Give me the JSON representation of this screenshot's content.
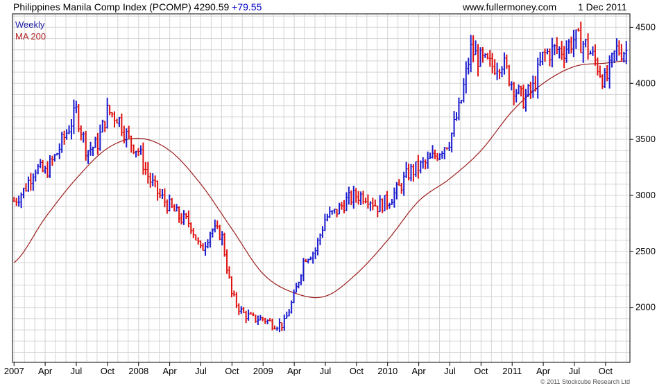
{
  "header": {
    "title": "Philippines Manila Comp Index (PCOMP) 4290.59",
    "change": "+79.55",
    "site": "www.fullermoney.com",
    "date": "1 Dec 2011"
  },
  "legend": {
    "series1": "Weekly",
    "series2": "MA 200"
  },
  "copyright": "© 2011 Stockcube Research Ltd",
  "colors": {
    "up": "#1a1ad0",
    "down": "#e01010",
    "ma": "#9c1c1c",
    "grid": "#d4d4d4",
    "axis": "#000000"
  },
  "chart_data": {
    "type": "line",
    "x_ticks": [
      "2007",
      "Apr",
      "Jul",
      "Oct",
      "2008",
      "Apr",
      "Jul",
      "Oct",
      "2009",
      "Apr",
      "Jul",
      "Oct",
      "2010",
      "Apr",
      "Jul",
      "Oct",
      "2011",
      "Apr",
      "Jul",
      "Oct"
    ],
    "y_ticks": [
      "2000",
      "2500",
      "3000",
      "3500",
      "4000",
      "4500"
    ],
    "ylim": [
      1510,
      4620
    ],
    "grid": true,
    "legend_position": "top-left",
    "series": [
      {
        "name": "Weekly",
        "style": "ohlc-bars",
        "x": [
          "2007-01",
          "2007-02",
          "2007-03",
          "2007-04",
          "2007-05",
          "2007-06",
          "2007-07",
          "2007-08",
          "2007-09",
          "2007-10",
          "2007-11",
          "2007-12",
          "2008-01",
          "2008-02",
          "2008-03",
          "2008-04",
          "2008-05",
          "2008-06",
          "2008-07",
          "2008-08",
          "2008-09",
          "2008-10",
          "2008-11",
          "2008-12",
          "2009-01",
          "2009-02",
          "2009-03",
          "2009-04",
          "2009-05",
          "2009-06",
          "2009-07",
          "2009-08",
          "2009-09",
          "2009-10",
          "2009-11",
          "2009-12",
          "2010-01",
          "2010-02",
          "2010-03",
          "2010-04",
          "2010-05",
          "2010-06",
          "2010-07",
          "2010-08",
          "2010-09",
          "2010-10",
          "2010-11",
          "2010-12",
          "2011-01",
          "2011-02",
          "2011-03",
          "2011-04",
          "2011-05",
          "2011-06",
          "2011-07",
          "2011-08",
          "2011-09",
          "2011-10",
          "2011-11",
          "2011-12"
        ],
        "values": [
          2950,
          3050,
          3250,
          3200,
          3350,
          3550,
          3750,
          3400,
          3450,
          3750,
          3700,
          3500,
          3400,
          3150,
          3000,
          2900,
          2800,
          2750,
          2500,
          2700,
          2650,
          2100,
          1950,
          1900,
          1900,
          1850,
          1850,
          2100,
          2450,
          2500,
          2800,
          2850,
          2950,
          3000,
          3000,
          2900,
          2950,
          3050,
          3200,
          3250,
          3300,
          3400,
          3500,
          3800,
          4300,
          4200,
          4150,
          4200,
          4000,
          3850,
          3950,
          4250,
          4300,
          4300,
          4400,
          4350,
          4200,
          4000,
          4300,
          4290
        ]
      },
      {
        "name": "MA 200",
        "x": [
          "2007-01",
          "2007-04",
          "2007-07",
          "2007-10",
          "2008-01",
          "2008-04",
          "2008-07",
          "2008-10",
          "2009-01",
          "2009-04",
          "2009-07",
          "2009-10",
          "2010-01",
          "2010-04",
          "2010-07",
          "2010-10",
          "2011-01",
          "2011-04",
          "2011-07",
          "2011-10",
          "2011-12"
        ],
        "values": [
          2400,
          2800,
          3150,
          3420,
          3510,
          3400,
          3100,
          2700,
          2300,
          2130,
          2100,
          2300,
          2600,
          2950,
          3150,
          3400,
          3750,
          4000,
          4150,
          4180,
          4200
        ]
      }
    ]
  }
}
